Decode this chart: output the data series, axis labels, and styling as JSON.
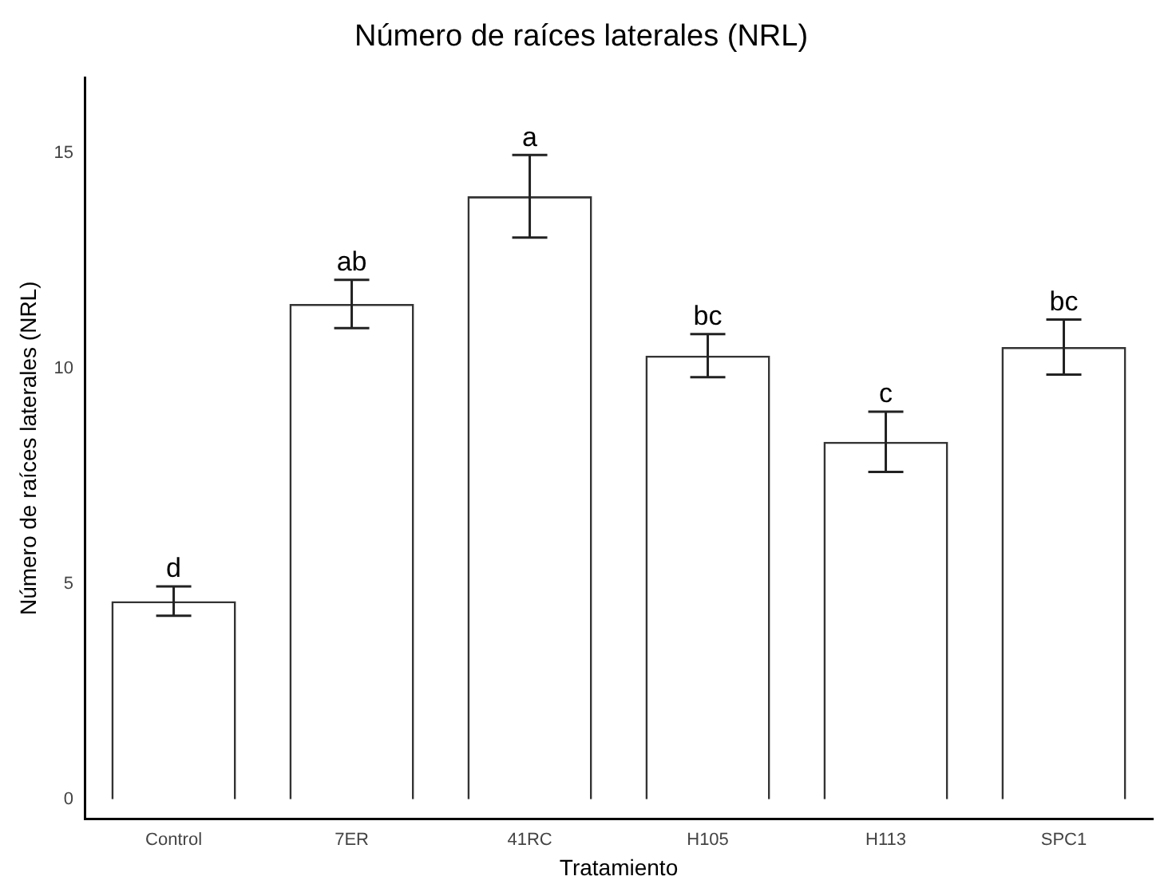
{
  "chart_data": {
    "type": "bar",
    "title": "Número de raíces laterales (NRL)",
    "xlabel": "Tratamiento",
    "ylabel": "Número de raíces laterales (NRL)",
    "categories": [
      "Control",
      "7ER",
      "41RC",
      "H105",
      "H113",
      "SPC1"
    ],
    "values": [
      4.6,
      11.5,
      14.0,
      10.3,
      8.3,
      10.5
    ],
    "errors": [
      0.34,
      0.56,
      0.96,
      0.5,
      0.7,
      0.64
    ],
    "color": "#333333",
    "ylim": [
      -0.45,
      16.75
    ],
    "yticks": [
      0,
      5,
      10,
      15
    ],
    "grid": false,
    "legend": false,
    "annotations": [
      {
        "text": "d",
        "x": "Control",
        "y": 4.94
      },
      {
        "text": "ab",
        "x": "7ER",
        "y": 12.06
      },
      {
        "text": "a",
        "x": "41RC",
        "y": 14.96
      },
      {
        "text": "bc",
        "x": "H105",
        "y": 10.8
      },
      {
        "text": "c",
        "x": "H113",
        "y": 9.0
      },
      {
        "text": "bc",
        "x": "SPC1",
        "y": 11.14
      }
    ]
  }
}
